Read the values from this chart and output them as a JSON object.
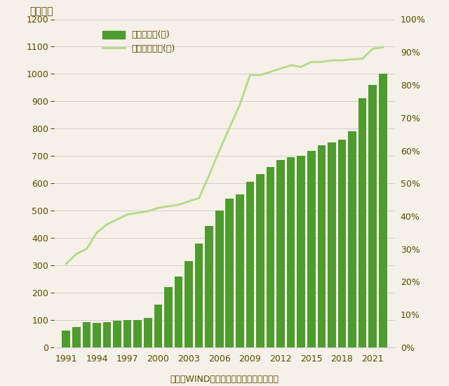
{
  "years": [
    1991,
    1992,
    1993,
    1994,
    1995,
    1996,
    1997,
    1998,
    1999,
    2000,
    2001,
    2002,
    2003,
    2004,
    2005,
    2006,
    2007,
    2008,
    2009,
    2010,
    2011,
    2012,
    2013,
    2014,
    2015,
    2016,
    2017,
    2018,
    2019,
    2020,
    2021,
    2022
  ],
  "bar_values": [
    62,
    75,
    92,
    90,
    92,
    97,
    100,
    100,
    108,
    156,
    220,
    260,
    315,
    380,
    445,
    500,
    545,
    560,
    605,
    635,
    660,
    685,
    695,
    700,
    720,
    740,
    750,
    760,
    790,
    910,
    960,
    1000
  ],
  "line_values": [
    0.255,
    0.285,
    0.3,
    0.35,
    0.375,
    0.39,
    0.405,
    0.41,
    0.415,
    0.425,
    0.43,
    0.435,
    0.445,
    0.455,
    0.525,
    0.6,
    0.67,
    0.74,
    0.83,
    0.83,
    0.84,
    0.85,
    0.86,
    0.855,
    0.87,
    0.87,
    0.875,
    0.875,
    0.878,
    0.88,
    0.91,
    0.915
  ],
  "bar_color": "#4d9c2d",
  "line_color": "#b5d98a",
  "bar_label": "大学新入生(左)",
  "line_label": "高校の進学率(右)",
  "ylabel_left": "（万人）",
  "ylim_left": [
    0,
    1200
  ],
  "ylim_right": [
    0,
    1.0
  ],
  "yticks_left": [
    0,
    100,
    200,
    300,
    400,
    500,
    600,
    700,
    800,
    900,
    1000,
    1100,
    1200
  ],
  "yticks_right": [
    0.0,
    0.1,
    0.2,
    0.3,
    0.4,
    0.5,
    0.6,
    0.7,
    0.8,
    0.9,
    1.0
  ],
  "xtick_labels": [
    "1991",
    "1994",
    "1997",
    "2000",
    "2003",
    "2006",
    "2009",
    "2012",
    "2015",
    "2018",
    "2021"
  ],
  "xtick_positions": [
    1991,
    1994,
    1997,
    2000,
    2003,
    2006,
    2009,
    2012,
    2015,
    2018,
    2021
  ],
  "source_text": "出所：WINDデータよりアイザワ証券作成",
  "background_color": "#f5f0e8",
  "grid_color": "#cccccc",
  "text_color": "#5a4a00",
  "spine_color": "#cccccc"
}
